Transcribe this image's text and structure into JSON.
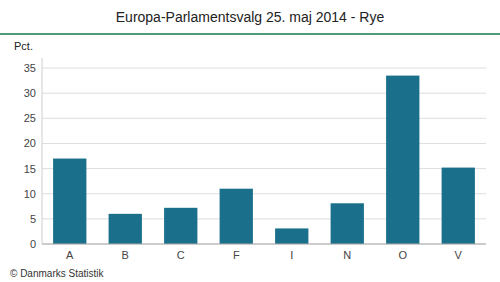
{
  "chart_data": {
    "type": "bar",
    "title": "Europa-Parlamentsvalg 25. maj 2014 - Rye",
    "categories": [
      "A",
      "B",
      "C",
      "F",
      "I",
      "N",
      "O",
      "V"
    ],
    "values": [
      17.0,
      6.0,
      7.2,
      11.0,
      3.1,
      8.1,
      33.5,
      15.2
    ],
    "color": "#1a6f8a",
    "ylabel": "Pct.",
    "ylim": [
      0,
      37
    ],
    "yticks": [
      0,
      5,
      10,
      15,
      20,
      25,
      30,
      35
    ],
    "grid": true,
    "footer": "© Danmarks Statistik"
  }
}
